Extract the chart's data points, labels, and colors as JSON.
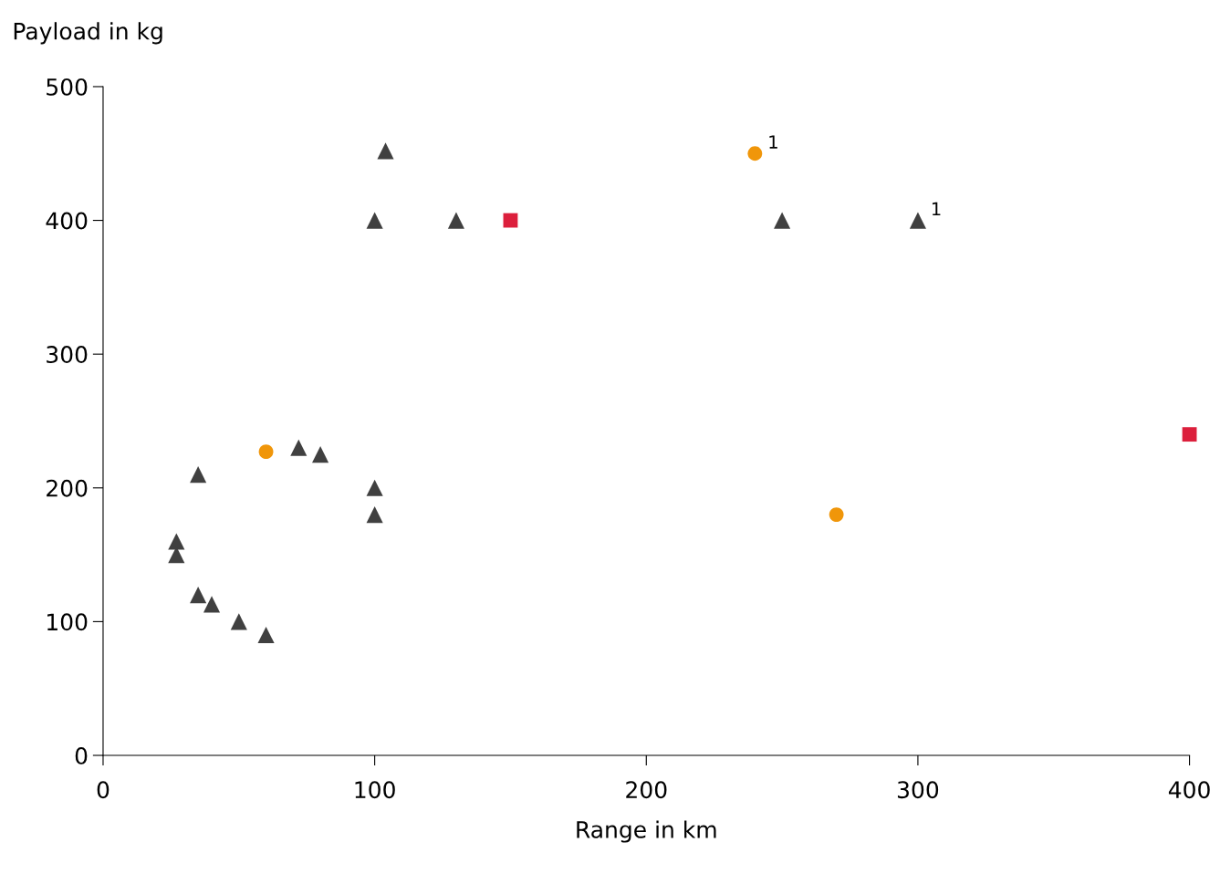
{
  "chart_data": {
    "type": "scatter",
    "xlabel": "Range in km",
    "ylabel": "Payload in kg",
    "xlim": [
      0,
      400
    ],
    "xticks": [
      0,
      100,
      200,
      300,
      400
    ],
    "ylim": [
      0,
      500
    ],
    "yticks": [
      0,
      100,
      200,
      300,
      400,
      500
    ],
    "grid": false,
    "legend": false,
    "series": [
      {
        "color": "#404040",
        "marker": "triangle",
        "x": [
          27,
          27,
          35,
          35,
          40,
          50,
          60,
          72,
          80,
          100,
          100,
          100,
          104,
          130,
          250,
          300
        ],
        "values": [
          160,
          150,
          210,
          120,
          113,
          100,
          90,
          230,
          225,
          200,
          180,
          400,
          452,
          400,
          400,
          400
        ]
      },
      {
        "color": "#f0960a",
        "marker": "circle",
        "x": [
          60,
          240,
          270
        ],
        "values": [
          227,
          450,
          180
        ]
      },
      {
        "color": "#dc1f3c",
        "marker": "square",
        "x": [
          150,
          400
        ],
        "values": [
          400,
          240
        ]
      }
    ],
    "annotations": [
      {
        "text": "1",
        "x": 240,
        "y": 450
      },
      {
        "text": "1",
        "x": 300,
        "y": 400
      }
    ]
  }
}
